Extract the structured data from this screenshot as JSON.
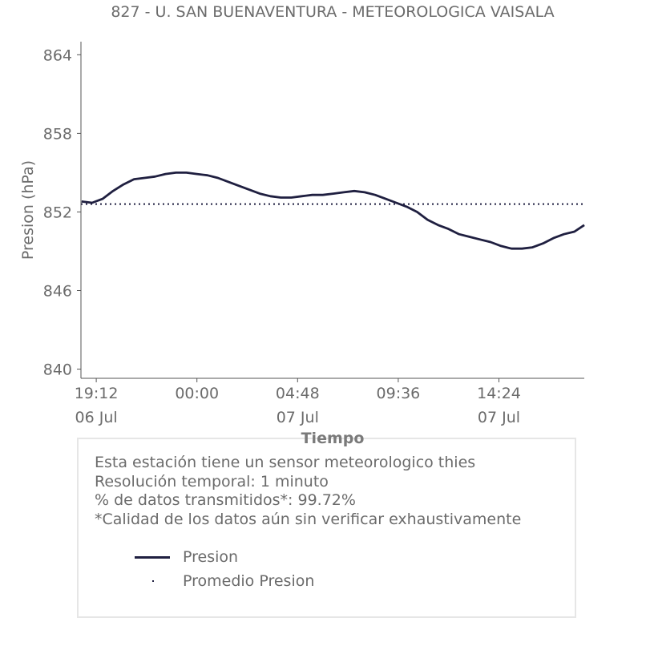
{
  "chart_data": {
    "type": "line",
    "title": "827 - U. SAN BUENAVENTURA - METEOROLOGICA VAISALA",
    "xlabel": "Tiempo",
    "ylabel": "Presion (hPa)",
    "yticks": [
      "840",
      "846",
      "852",
      "858",
      "864"
    ],
    "ylim": [
      839.3,
      865.0
    ],
    "xticks": [
      {
        "time": "19:12",
        "date": "06 Jul",
        "hour": 19.2
      },
      {
        "time": "00:00",
        "date": "",
        "hour": 24.0
      },
      {
        "time": "04:48",
        "date": "07 Jul",
        "hour": 28.8
      },
      {
        "time": "09:36",
        "date": "",
        "hour": 33.6
      },
      {
        "time": "14:24",
        "date": "07 Jul",
        "hour": 38.4
      }
    ],
    "xlim_hours": [
      18.47,
      42.47
    ],
    "grid": false,
    "series": [
      {
        "name": "Presion",
        "style": "solid",
        "color": "#1f1f40",
        "hours": [
          18.5,
          19.0,
          19.5,
          20.0,
          20.5,
          21.0,
          21.5,
          22.0,
          22.5,
          23.0,
          23.5,
          24.0,
          24.5,
          25.0,
          25.5,
          26.0,
          26.5,
          27.0,
          27.5,
          28.0,
          28.5,
          29.0,
          29.5,
          30.0,
          30.5,
          31.0,
          31.5,
          32.0,
          32.5,
          33.0,
          33.5,
          34.0,
          34.5,
          35.0,
          35.5,
          36.0,
          36.5,
          37.0,
          37.5,
          38.0,
          38.5,
          39.0,
          39.5,
          40.0,
          40.5,
          41.0,
          41.5,
          42.0,
          42.47
        ],
        "values": [
          852.8,
          852.7,
          853.0,
          853.6,
          854.1,
          854.5,
          854.6,
          854.7,
          854.9,
          855.0,
          855.0,
          854.9,
          854.8,
          854.6,
          854.3,
          854.0,
          853.7,
          853.4,
          853.2,
          853.1,
          853.1,
          853.2,
          853.3,
          853.3,
          853.4,
          853.5,
          853.6,
          853.5,
          853.3,
          853.0,
          852.7,
          852.4,
          852.0,
          851.4,
          851.0,
          850.7,
          850.3,
          850.1,
          849.9,
          849.7,
          849.4,
          849.2,
          849.2,
          849.3,
          849.6,
          850.0,
          850.3,
          850.5,
          851.0
        ]
      },
      {
        "name": "Promedio Presion",
        "style": "dotted",
        "color": "#1f1f40",
        "value": 852.6
      }
    ]
  },
  "info": {
    "lines": [
      "Esta estación tiene un sensor meteorologico thies",
      "Resolución temporal: 1 minuto",
      "% de datos transmitidos*: 99.72%",
      "*Calidad de los datos aún sin verificar exhaustivamente"
    ]
  },
  "legend": {
    "items": [
      "Presion",
      "Promedio Presion"
    ]
  }
}
